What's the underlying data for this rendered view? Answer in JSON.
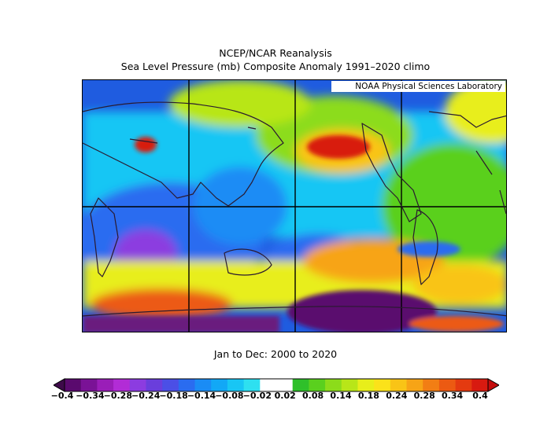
{
  "title_line1": "NCEP/NCAR Reanalysis",
  "title_line2": "Sea Level Pressure (mb) Composite Anomaly 1991–2020 climo",
  "credit": "NOAA Physical Sciences Laboratory",
  "subtitle": "Jan to Dec: 2000 to 2020",
  "colorbar": {
    "labels": [
      "−0.4",
      "−0.34",
      "−0.28",
      "−0.24",
      "−0.18",
      "−0.14",
      "−0.08",
      "−0.02",
      "0.02",
      "0.08",
      "0.14",
      "0.18",
      "0.24",
      "0.28",
      "0.34",
      "0.4"
    ],
    "colors": [
      "#5a0a6e",
      "#7a1296",
      "#9a1eb8",
      "#b22cd6",
      "#8c3ce0",
      "#6a3edc",
      "#4b4fe6",
      "#2a6cf0",
      "#1a8cf5",
      "#12a8f6",
      "#18c6f4",
      "#2ee0f0",
      "#ffffff",
      "#ffffff",
      "#2fc02a",
      "#5ad01e",
      "#8cdc1a",
      "#b8e618",
      "#e8ee1a",
      "#fbe21a",
      "#f9c416",
      "#f7a416",
      "#f27e14",
      "#ec5a12",
      "#e43a10",
      "#d81a10"
    ],
    "end_low": "#3e0a4a",
    "end_high": "#c40c0c"
  }
}
